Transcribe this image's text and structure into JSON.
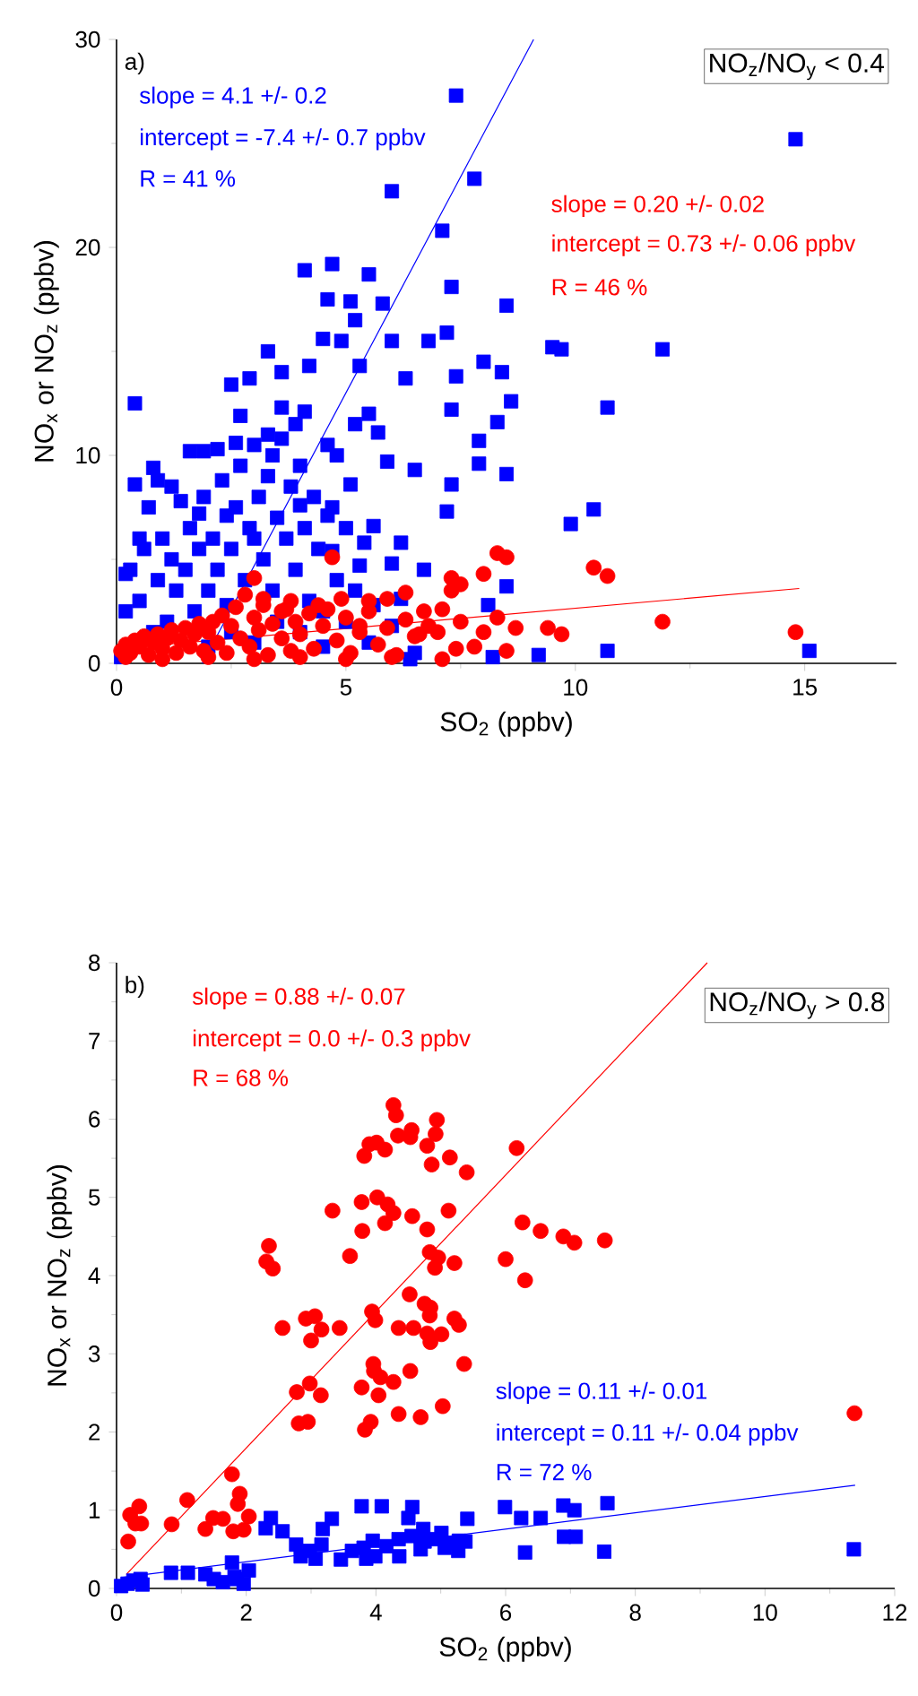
{
  "chart_data": [
    {
      "type": "scatter",
      "xlabel": "SO$_{2}$ (ppbv)",
      "ylabel": "NO$_{x}$ or NO$_{z}$ (ppbv)",
      "xlim": [
        0,
        17
      ],
      "ylim": [
        0,
        30
      ],
      "xticks": [
        0,
        5,
        10,
        15
      ],
      "yticks": [
        0,
        10,
        20,
        30
      ],
      "annotations": [
        "a)",
        "slope = 4.1 +/- 0.2",
        "intercept = -7.4 +/- 0.7 ppbv",
        "R = 41 %",
        "slope = 0.20 +/- 0.02",
        "intercept = 0.73 +/- 0.06 ppbv",
        "R = 46 %",
        "NO$_{z}$/NO$_{y}$ < 0.4"
      ],
      "series": [
        {
          "marker": "square",
          "color": "#0000ff",
          "x": [
            7.4,
            14.8,
            7.8,
            6.0,
            7.1,
            4.1,
            4.7,
            5.5,
            7.3,
            8.5,
            4.6,
            5.1,
            5.8,
            5.2,
            7.2,
            4.5,
            4.9,
            6.0,
            6.8,
            9.5,
            9.7,
            11.9,
            3.3,
            4.2,
            5.3,
            8.0,
            8.4,
            3.6,
            2.5,
            2.9,
            6.3,
            7.4,
            8.6,
            0.4,
            7.3,
            10.7,
            3.6,
            4.1,
            5.5,
            2.7,
            5.2,
            8.3,
            5.7,
            7.9,
            1.9,
            2.6,
            4.6,
            4.8,
            3.4,
            5.9,
            6.5,
            7.9,
            8.5,
            0.8,
            0.4,
            5.1,
            7.3,
            1.8,
            2.4,
            4.0,
            4.6,
            7.2,
            10.4,
            9.9,
            5.6,
            6.2,
            3.0,
            0.5,
            0.2,
            6.0,
            6.7,
            8.5,
            5.3,
            4.7,
            8.1,
            10.7,
            15.1,
            9.2,
            8.2,
            6.2,
            6.4,
            0.2,
            0.3,
            0.5,
            0.6,
            0.7,
            0.9,
            1.0,
            1.1,
            1.2,
            1.3,
            1.4,
            1.5,
            1.6,
            1.7,
            1.8,
            1.9,
            2.0,
            2.1,
            2.2,
            2.3,
            2.4,
            2.5,
            2.6,
            2.7,
            2.8,
            2.9,
            3.0,
            3.1,
            3.2,
            3.3,
            3.4,
            3.5,
            3.6,
            3.7,
            3.8,
            3.9,
            4.0,
            4.1,
            4.2,
            4.3,
            4.4,
            4.5,
            4.7,
            4.8,
            5.0,
            5.2,
            5.4,
            5.6,
            0.8,
            2.0,
            2.5,
            3.0,
            3.5,
            4.0,
            4.5,
            5.0,
            5.5,
            6.0,
            6.5,
            0.1,
            1.2,
            2.2,
            3.3,
            3.9,
            1.6,
            0.9
          ],
          "values": [
            27.3,
            25.2,
            23.3,
            22.7,
            20.8,
            18.9,
            19.2,
            18.7,
            18.1,
            17.2,
            17.5,
            17.4,
            17.3,
            16.5,
            15.9,
            15.6,
            15.5,
            15.5,
            15.5,
            15.2,
            15.1,
            15.1,
            15.0,
            14.3,
            14.3,
            14.5,
            14.0,
            14.0,
            13.4,
            13.7,
            13.7,
            13.8,
            12.6,
            12.5,
            12.2,
            12.3,
            12.3,
            12.1,
            12.0,
            11.9,
            11.5,
            11.6,
            11.1,
            10.7,
            10.2,
            10.6,
            10.5,
            10.0,
            10.0,
            9.7,
            9.3,
            9.6,
            9.1,
            9.4,
            8.6,
            8.6,
            8.6,
            7.2,
            7.1,
            7.6,
            7.1,
            7.3,
            7.4,
            6.7,
            6.6,
            5.8,
            6.0,
            6.0,
            4.3,
            4.8,
            4.5,
            3.7,
            4.7,
            5.4,
            2.8,
            0.6,
            0.6,
            0.4,
            0.3,
            3.1,
            0.2,
            2.5,
            4.5,
            3.0,
            5.5,
            7.5,
            4.0,
            6.0,
            2.0,
            5.0,
            3.5,
            7.8,
            4.5,
            6.5,
            2.5,
            5.5,
            8.0,
            3.5,
            6.0,
            4.5,
            8.8,
            2.8,
            5.5,
            7.5,
            9.5,
            4.0,
            6.5,
            10.5,
            8.0,
            5.0,
            9.0,
            3.5,
            7.0,
            10.8,
            6.0,
            8.5,
            4.5,
            9.5,
            6.5,
            3.0,
            8.0,
            5.5,
            2.5,
            7.5,
            4.0,
            6.5,
            3.5,
            5.8,
            2.8,
            1.5,
            0.8,
            1.5,
            1.0,
            2.0,
            1.5,
            0.8,
            2.0,
            1.0,
            1.8,
            0.5,
            0.3,
            8.5,
            10.3,
            11.0,
            11.5,
            10.2,
            8.8
          ]
        },
        {
          "marker": "circle",
          "color": "#ff0000",
          "x": [
            4.7,
            3.0,
            8.3,
            8.5,
            10.4,
            10.7,
            7.3,
            7.5,
            8.0,
            7.3,
            11.9,
            14.8,
            9.4,
            9.7,
            8.7,
            8.5,
            7.8,
            7.1,
            7.4,
            7.1,
            6.7,
            6.3,
            5.9,
            6.6,
            5.5,
            5.3,
            4.9,
            4.4,
            3.8,
            3.6,
            3.2,
            0.1,
            0.2,
            0.3,
            0.4,
            0.5,
            0.6,
            0.7,
            0.8,
            0.9,
            1.0,
            1.1,
            1.2,
            1.3,
            1.4,
            1.5,
            1.6,
            1.7,
            1.8,
            1.9,
            2.0,
            2.1,
            2.2,
            2.3,
            2.4,
            2.5,
            2.6,
            2.7,
            2.8,
            2.9,
            3.0,
            3.1,
            3.2,
            3.3,
            3.4,
            3.6,
            3.7,
            3.8,
            3.9,
            4.0,
            4.2,
            4.3,
            4.5,
            4.6,
            4.8,
            5.0,
            5.1,
            5.3,
            5.5,
            5.7,
            5.9,
            6.1,
            6.3,
            6.5,
            6.8,
            7.0,
            7.5,
            8.0,
            8.3,
            0.2,
            1.0,
            2.0,
            3.0,
            4.0,
            5.0,
            6.0
          ],
          "values": [
            5.1,
            4.1,
            5.3,
            5.1,
            4.6,
            4.2,
            4.1,
            3.8,
            4.3,
            3.5,
            2.0,
            1.5,
            1.7,
            1.4,
            1.7,
            0.6,
            0.8,
            0.2,
            0.7,
            2.6,
            2.5,
            3.4,
            3.1,
            1.4,
            3.0,
            1.8,
            3.1,
            2.8,
            3.0,
            2.5,
            3.1,
            0.6,
            0.9,
            0.5,
            1.1,
            0.8,
            1.3,
            0.4,
            1.0,
            1.4,
            0.7,
            1.2,
            1.6,
            0.5,
            1.1,
            1.7,
            0.8,
            1.4,
            1.9,
            0.6,
            1.5,
            2.0,
            1.0,
            2.3,
            0.5,
            1.8,
            2.7,
            1.2,
            3.3,
            0.8,
            2.2,
            1.6,
            2.8,
            0.4,
            1.9,
            1.2,
            2.6,
            0.6,
            2.0,
            1.4,
            2.4,
            0.7,
            1.8,
            2.6,
            1.1,
            2.2,
            0.5,
            1.5,
            2.5,
            0.9,
            1.7,
            0.4,
            2.1,
            1.3,
            1.8,
            1.5,
            2.0,
            1.5,
            2.2,
            0.3,
            0.2,
            0.3,
            0.2,
            0.3,
            0.2,
            0.3
          ]
        },
        {
          "type": "line",
          "color": "#0000ff",
          "x": [
            1.87,
            9.09
          ],
          "values": [
            0,
            30
          ]
        },
        {
          "type": "line",
          "color": "#ff0000",
          "x": [
            0,
            14.88
          ],
          "values": [
            0.7,
            3.6
          ]
        }
      ]
    },
    {
      "type": "scatter",
      "xlabel": "SO$_{2}$ (ppbv)",
      "ylabel": "NO$_{x}$ or NO$_{z}$ (ppbv)",
      "xlim": [
        0,
        12
      ],
      "ylim": [
        0,
        8
      ],
      "xticks": [
        0,
        2,
        4,
        6,
        8,
        10,
        12
      ],
      "yticks": [
        0,
        1,
        2,
        3,
        4,
        5,
        6,
        7,
        8
      ],
      "annotations": [
        "b)",
        "slope = 0.11 +/- 0.01",
        "intercept = 0.11 +/- 0.04 ppbv",
        "R = 72 %",
        "slope = 0.88 +/- 0.07",
        "intercept = 0.0 +/- 0.3 ppbv",
        "R = 68 %",
        "NO$_{z}$/NO$_{y}$ > 0.8"
      ],
      "series": [
        {
          "marker": "square",
          "color": "#0000ff",
          "x": [
            3.78,
            4.09,
            4.56,
            5.99,
            6.89,
            7.57,
            7.06,
            2.38,
            2.3,
            2.56,
            3.32,
            3.18,
            4.5,
            5.41,
            6.24,
            6.54,
            4.73,
            5.01,
            6.9,
            7.08,
            6.3,
            7.52,
            11.37,
            2.77,
            2.98,
            3.16,
            2.84,
            3.07,
            3.46,
            3.63,
            3.81,
            3.95,
            4.16,
            4.35,
            4.55,
            4.75,
            4.92,
            5.1,
            5.28,
            3.85,
            3.99,
            4.36,
            4.69,
            5.06,
            5.27,
            5.38,
            0.84,
            1.1,
            1.37,
            1.5,
            1.64,
            1.78,
            1.82,
            1.96,
            2.04,
            1.85,
            0.17,
            0.26,
            0.37,
            0.4,
            0.07
          ],
          "values": [
            1.05,
            1.05,
            1.04,
            1.04,
            1.06,
            1.09,
            1.0,
            0.9,
            0.77,
            0.73,
            0.89,
            0.76,
            0.9,
            0.89,
            0.9,
            0.9,
            0.76,
            0.71,
            0.66,
            0.66,
            0.46,
            0.47,
            0.5,
            0.56,
            0.48,
            0.56,
            0.41,
            0.38,
            0.37,
            0.48,
            0.52,
            0.61,
            0.54,
            0.63,
            0.67,
            0.6,
            0.63,
            0.58,
            0.61,
            0.38,
            0.41,
            0.41,
            0.5,
            0.52,
            0.48,
            0.6,
            0.2,
            0.2,
            0.18,
            0.12,
            0.08,
            0.33,
            0.15,
            0.06,
            0.23,
            0.12,
            0.06,
            0.1,
            0.12,
            0.05,
            0.03
          ]
        },
        {
          "marker": "circle",
          "color": "#ff0000",
          "x": [
            4.27,
            4.31,
            4.94,
            3.82,
            3.9,
            4.01,
            4.14,
            4.34,
            4.55,
            4.53,
            4.92,
            4.79,
            5.14,
            4.86,
            5.4,
            6.17,
            3.33,
            3.78,
            4.02,
            4.18,
            4.27,
            4.56,
            5.12,
            4.14,
            3.79,
            4.79,
            6.26,
            6.54,
            6.89,
            7.06,
            7.53,
            3.6,
            2.35,
            2.31,
            2.41,
            4.83,
            4.96,
            5.21,
            6.0,
            4.91,
            6.3,
            4.52,
            4.75,
            4.84,
            4.83,
            3.94,
            3.99,
            2.56,
            2.92,
            3.06,
            3.16,
            3.44,
            3.0,
            4.35,
            4.58,
            4.79,
            5.01,
            4.84,
            5.21,
            5.28,
            5.36,
            3.96,
            3.97,
            4.53,
            3.78,
            4.07,
            4.27,
            4.04,
            2.98,
            2.78,
            3.15,
            5.03,
            4.35,
            4.69,
            2.81,
            2.95,
            3.92,
            3.83,
            11.38,
            1.78,
            1.09,
            0.85,
            0.18,
            0.21,
            0.35,
            0.29,
            0.38,
            1.9,
            1.87,
            1.37,
            1.49,
            1.64,
            1.8,
            2.04,
            1.96
          ],
          "values": [
            6.18,
            6.05,
            5.99,
            5.53,
            5.68,
            5.7,
            5.61,
            5.79,
            5.86,
            5.77,
            5.81,
            5.66,
            5.51,
            5.42,
            5.32,
            5.63,
            4.83,
            4.94,
            5.0,
            4.91,
            4.8,
            4.76,
            4.83,
            4.67,
            4.57,
            4.59,
            4.68,
            4.57,
            4.5,
            4.42,
            4.45,
            4.25,
            4.38,
            4.18,
            4.09,
            4.3,
            4.23,
            4.16,
            4.21,
            4.1,
            3.94,
            3.76,
            3.64,
            3.59,
            3.49,
            3.54,
            3.43,
            3.33,
            3.45,
            3.48,
            3.31,
            3.33,
            3.17,
            3.33,
            3.33,
            3.26,
            3.25,
            3.15,
            3.45,
            3.37,
            2.87,
            2.87,
            2.78,
            2.78,
            2.57,
            2.7,
            2.64,
            2.47,
            2.62,
            2.51,
            2.47,
            2.33,
            2.23,
            2.19,
            2.11,
            2.13,
            2.13,
            2.03,
            2.24,
            1.46,
            1.13,
            0.82,
            0.6,
            0.94,
            1.05,
            0.83,
            0.83,
            1.21,
            1.08,
            0.76,
            0.9,
            0.89,
            0.73,
            0.92,
            0.75
          ]
        },
        {
          "type": "line",
          "color": "#0000ff",
          "x": [
            0.07,
            11.39
          ],
          "values": [
            0.14,
            1.32
          ]
        },
        {
          "type": "line",
          "color": "#ff0000",
          "x": [
            0.15,
            9.11
          ],
          "values": [
            0.18,
            8.0
          ]
        }
      ]
    }
  ]
}
